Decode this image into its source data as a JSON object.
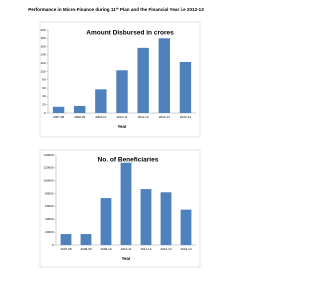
{
  "header": {
    "title_parts": [
      "Performance in Micro-Finance during 11",
      "th",
      " Plan and the Financial Year i.e 2012-13"
    ]
  },
  "chart_data": [
    {
      "type": "bar",
      "title": "Amount Disbursed in crores",
      "x_label": "Year",
      "categories": [
        "2007-08",
        "2008-09",
        "2009-10",
        "2010-11",
        "2011-12",
        "2012-13",
        "2013-14"
      ],
      "values": [
        15,
        17,
        57,
        103,
        157,
        180,
        123
      ],
      "color": "#4f81bd",
      "ylim": [
        0,
        200
      ],
      "yticks": [
        0,
        20,
        40,
        60,
        80,
        100,
        120,
        140,
        160,
        180,
        200
      ],
      "grid": false
    },
    {
      "type": "bar",
      "title": "No. of Beneficiaries",
      "x_label": "Year",
      "categories": [
        "2007-08",
        "2008-09",
        "2009-10",
        "2010-11",
        "2011-12",
        "2012-13",
        "2013-14"
      ],
      "values": [
        17000,
        17000,
        73000,
        128000,
        87000,
        82000,
        55000
      ],
      "color": "#4f81bd",
      "ylim": [
        0,
        140000
      ],
      "yticks": [
        0,
        20000,
        40000,
        60000,
        80000,
        100000,
        120000,
        140000
      ],
      "grid": false
    }
  ]
}
